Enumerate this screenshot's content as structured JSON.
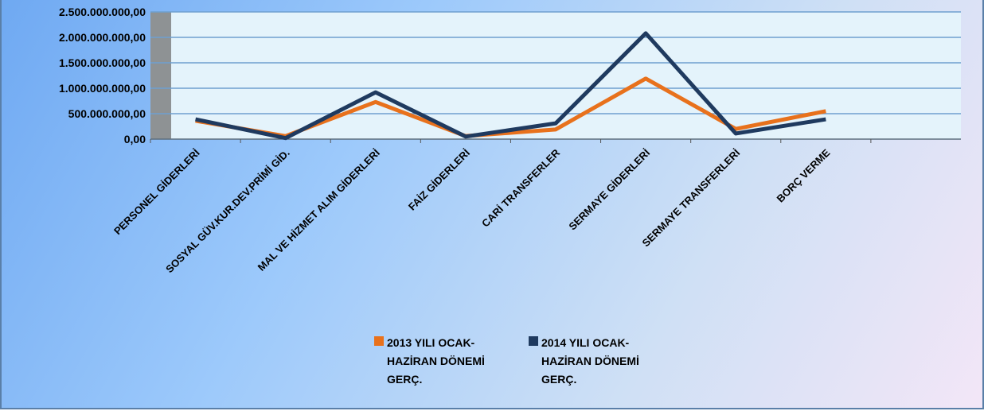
{
  "chart_data": {
    "type": "line",
    "categories": [
      "PERSONEL GİDERLERİ",
      "SOSYAL GÜV.KUR.DEV.PRİMİ GİD.",
      "MAL VE HİZMET ALIM GİDERLERİ",
      "FAİZ GİDERLERİ",
      "CARİ TRANSFERLER",
      "SERMAYE GİDERLERİ",
      "SERMAYE TRANSFERLERİ",
      "BORÇ VERME",
      null
    ],
    "series": [
      {
        "name": "2013 YILI OCAK-HAZİRAN DÖNEMİ GERÇ.",
        "color": "#e8711c",
        "values": [
          360000000,
          60000000,
          730000000,
          60000000,
          190000000,
          1190000000,
          200000000,
          550000000,
          null
        ]
      },
      {
        "name": "2014 YILI OCAK-HAZİRAN DÖNEMİ GERÇ.",
        "color": "#1f3a5f",
        "values": [
          390000000,
          20000000,
          920000000,
          50000000,
          310000000,
          2080000000,
          110000000,
          390000000,
          null
        ]
      }
    ],
    "ylim": [
      0,
      2500000000
    ],
    "yticks": [
      {
        "value": 0,
        "label": "0,00"
      },
      {
        "value": 500000000,
        "label": "500.000.000,00"
      },
      {
        "value": 1000000000,
        "label": "1.000.000.000,00"
      },
      {
        "value": 1500000000,
        "label": "1.500.000.000,00"
      },
      {
        "value": 2000000000,
        "label": "2.000.000.000,00"
      },
      {
        "value": 2500000000,
        "label": "2.500.000.000,00"
      }
    ],
    "grid": true
  }
}
